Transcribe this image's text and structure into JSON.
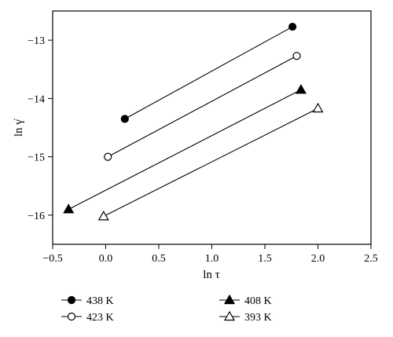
{
  "chart_data": {
    "type": "scatter",
    "xlabel": "ln τ",
    "ylabel": "ln γ̇",
    "xlim": [
      -0.5,
      2.5
    ],
    "ylim": [
      -16.5,
      -12.5
    ],
    "xticks": [
      -0.5,
      0.0,
      0.5,
      1.0,
      1.5,
      2.0,
      2.5
    ],
    "xtick_labels": [
      "−0.5",
      "0.0",
      "0.5",
      "1.0",
      "1.5",
      "2.0",
      "2.5"
    ],
    "yticks": [
      -16,
      -15,
      -14,
      -13
    ],
    "ytick_labels": [
      "−16",
      "−15",
      "−14",
      "−13"
    ],
    "grid": false,
    "legend_position": "bottom",
    "series": [
      {
        "name": "438 K",
        "marker": "filled-circle",
        "x": [
          0.18,
          1.76
        ],
        "y": [
          -14.35,
          -12.77
        ]
      },
      {
        "name": "423 K",
        "marker": "open-circle",
        "x": [
          0.02,
          1.8
        ],
        "y": [
          -15.0,
          -13.27
        ]
      },
      {
        "name": "408 K",
        "marker": "filled-triangle",
        "x": [
          -0.35,
          1.84
        ],
        "y": [
          -15.9,
          -13.85
        ]
      },
      {
        "name": "393 K",
        "marker": "open-triangle",
        "x": [
          -0.02,
          2.0
        ],
        "y": [
          -16.02,
          -14.17
        ]
      }
    ]
  }
}
